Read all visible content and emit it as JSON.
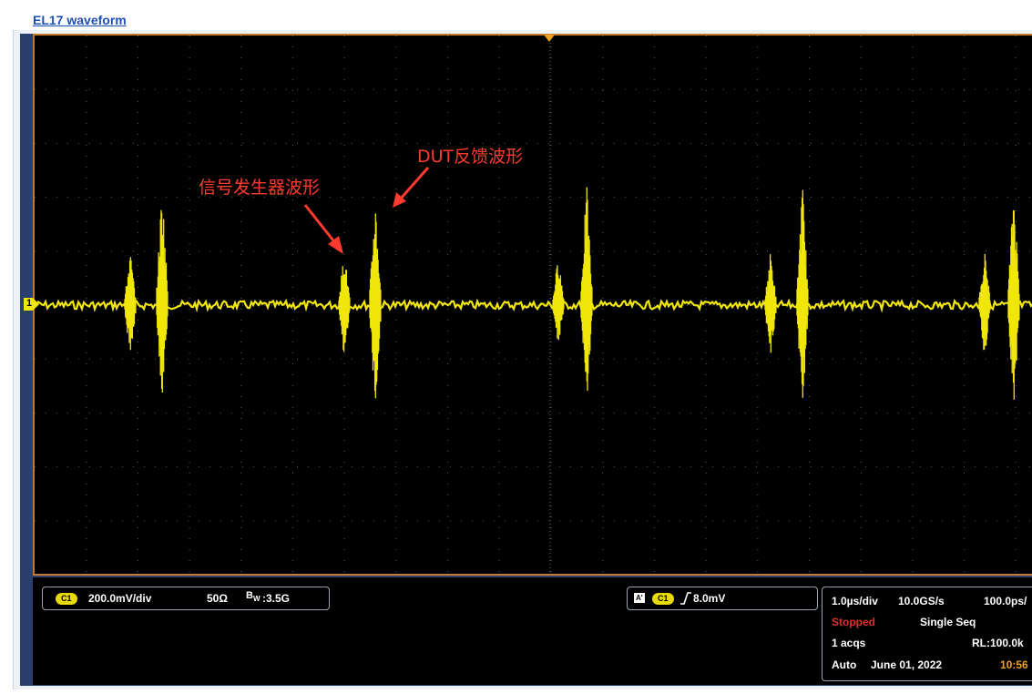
{
  "title": "EL17 waveform",
  "annotations": {
    "signal_generator": "信号发生器波形",
    "dut_feedback": "DUT反馈波形"
  },
  "channel_marker": "1",
  "colors": {
    "trace": "#f0e60a",
    "annotation": "#ff3b30",
    "screen_bg": "#000000",
    "grid": "#5a5a5a",
    "frame": "#c07a2a",
    "panel_bg": "#2b3f6e",
    "stopped": "#e0302a",
    "time": "#f0a020"
  },
  "channel_box": {
    "badge": "C1",
    "scale": "200.0mV/div",
    "impedance": "50Ω",
    "bw_icon": "B_W",
    "bandwidth": ":3.5G"
  },
  "trigger_box": {
    "mode_icon": "A'",
    "badge": "C1",
    "slope_icon": "rising-edge-icon",
    "level": "8.0mV"
  },
  "acq_box": {
    "timebase": "1.0µs/div",
    "sample_rate": "10.0GS/s",
    "resolution": "100.0ps/",
    "state": "Stopped",
    "mode": "Single Seq",
    "acqs": "1 acqs",
    "record_length": "RL:100.0k",
    "trigger_mode": "Auto",
    "date": "June 01, 2022",
    "time": "10:56"
  }
}
